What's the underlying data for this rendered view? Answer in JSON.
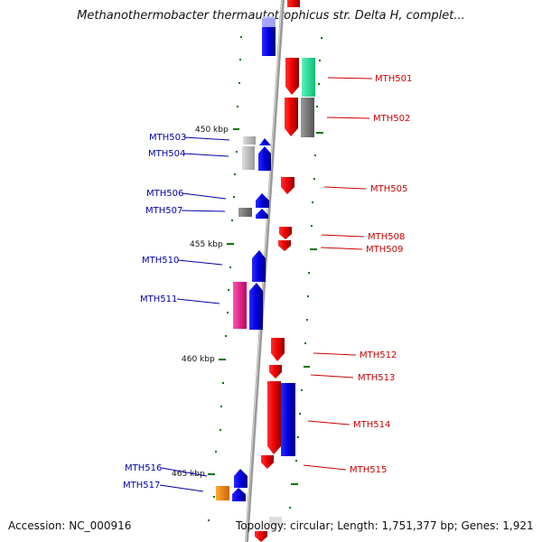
{
  "title": "Methanothermobacter thermautotrophicus str. Delta H, complet...",
  "accession_text": "Accession: NC_000916",
  "stats_text": "Topology: circular; Length: 1,751,377 bp; Genes: 1,921",
  "colors": {
    "forward_gene": "#0000ee",
    "reverse_gene": "#ee0000",
    "label_left": "#0000aa",
    "label_right": "#cc0000",
    "tick": "#007700",
    "backbone": "#999999",
    "orange_gene": "#ee8800",
    "pink_gene": "#ee1188",
    "teal_gene": "#22dd99",
    "gray_gene": "#777777",
    "light_gray_gene": "#bbbbbb"
  },
  "scale_labels": [
    "450 kbp",
    "455 kbp",
    "460 kbp",
    "465 kbp"
  ],
  "genes": [
    {
      "label": "MTH501",
      "side": "right",
      "icon": "teal-gene-icon"
    },
    {
      "label": "MTH502",
      "side": "right",
      "icon": "gray-gene-icon"
    },
    {
      "label": "MTH503",
      "side": "left",
      "icon": "light-gray-gene-icon"
    },
    {
      "label": "MTH504",
      "side": "left",
      "icon": "light-gray-gene-icon"
    },
    {
      "label": "MTH505",
      "side": "right",
      "icon": "red-gene-icon"
    },
    {
      "label": "MTH506",
      "side": "left",
      "icon": "blue-gene-icon"
    },
    {
      "label": "MTH507",
      "side": "left",
      "icon": "gray-gene-icon"
    },
    {
      "label": "MTH508",
      "side": "right",
      "icon": "red-gene-icon"
    },
    {
      "label": "MTH509",
      "side": "right",
      "icon": "red-gene-icon"
    },
    {
      "label": "MTH510",
      "side": "left",
      "icon": "blue-gene-icon"
    },
    {
      "label": "MTH511",
      "side": "left",
      "icon": "pink-gene-icon"
    },
    {
      "label": "MTH512",
      "side": "right",
      "icon": "red-gene-icon"
    },
    {
      "label": "MTH513",
      "side": "right",
      "icon": "red-gene-icon"
    },
    {
      "label": "MTH514",
      "side": "right",
      "icon": "blue-gene-icon"
    },
    {
      "label": "MTH515",
      "side": "right",
      "icon": "red-gene-icon"
    },
    {
      "label": "MTH516",
      "side": "left",
      "icon": "blue-gene-icon"
    },
    {
      "label": "MTH517",
      "side": "left",
      "icon": "orange-gene-icon"
    }
  ]
}
